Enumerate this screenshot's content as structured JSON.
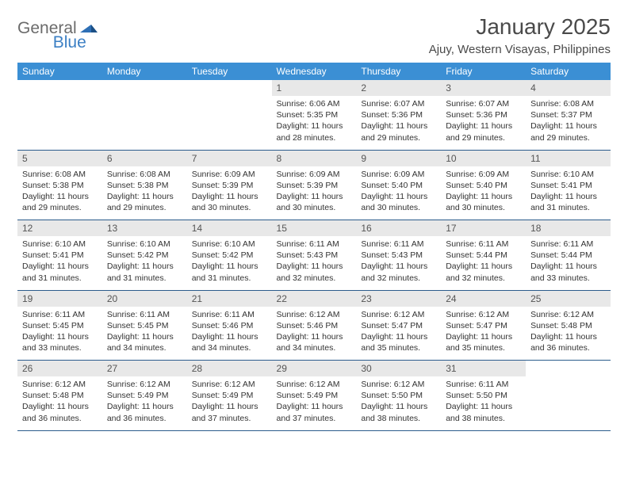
{
  "brand": {
    "part1": "General",
    "part2": "Blue"
  },
  "title": "January 2025",
  "location": "Ajuy, Western Visayas, Philippines",
  "colors": {
    "header_bg": "#3b8fd4",
    "header_fg": "#ffffff",
    "daynum_bg": "#e8e8e8",
    "daynum_fg": "#555555",
    "cell_border": "#2b5c8c",
    "logo_gray": "#6b6b6b",
    "logo_blue": "#3b7fc4",
    "page_bg": "#ffffff",
    "text": "#333333"
  },
  "typography": {
    "month_title_fontsize": 28,
    "location_fontsize": 15,
    "weekday_fontsize": 12,
    "daynum_fontsize": 12,
    "detail_fontsize": 10.5
  },
  "weekdays": [
    "Sunday",
    "Monday",
    "Tuesday",
    "Wednesday",
    "Thursday",
    "Friday",
    "Saturday"
  ],
  "weeks": [
    [
      null,
      null,
      null,
      {
        "n": "1",
        "sr": "6:06 AM",
        "ss": "5:35 PM",
        "dl": "11 hours and 28 minutes."
      },
      {
        "n": "2",
        "sr": "6:07 AM",
        "ss": "5:36 PM",
        "dl": "11 hours and 29 minutes."
      },
      {
        "n": "3",
        "sr": "6:07 AM",
        "ss": "5:36 PM",
        "dl": "11 hours and 29 minutes."
      },
      {
        "n": "4",
        "sr": "6:08 AM",
        "ss": "5:37 PM",
        "dl": "11 hours and 29 minutes."
      }
    ],
    [
      {
        "n": "5",
        "sr": "6:08 AM",
        "ss": "5:38 PM",
        "dl": "11 hours and 29 minutes."
      },
      {
        "n": "6",
        "sr": "6:08 AM",
        "ss": "5:38 PM",
        "dl": "11 hours and 29 minutes."
      },
      {
        "n": "7",
        "sr": "6:09 AM",
        "ss": "5:39 PM",
        "dl": "11 hours and 30 minutes."
      },
      {
        "n": "8",
        "sr": "6:09 AM",
        "ss": "5:39 PM",
        "dl": "11 hours and 30 minutes."
      },
      {
        "n": "9",
        "sr": "6:09 AM",
        "ss": "5:40 PM",
        "dl": "11 hours and 30 minutes."
      },
      {
        "n": "10",
        "sr": "6:09 AM",
        "ss": "5:40 PM",
        "dl": "11 hours and 30 minutes."
      },
      {
        "n": "11",
        "sr": "6:10 AM",
        "ss": "5:41 PM",
        "dl": "11 hours and 31 minutes."
      }
    ],
    [
      {
        "n": "12",
        "sr": "6:10 AM",
        "ss": "5:41 PM",
        "dl": "11 hours and 31 minutes."
      },
      {
        "n": "13",
        "sr": "6:10 AM",
        "ss": "5:42 PM",
        "dl": "11 hours and 31 minutes."
      },
      {
        "n": "14",
        "sr": "6:10 AM",
        "ss": "5:42 PM",
        "dl": "11 hours and 31 minutes."
      },
      {
        "n": "15",
        "sr": "6:11 AM",
        "ss": "5:43 PM",
        "dl": "11 hours and 32 minutes."
      },
      {
        "n": "16",
        "sr": "6:11 AM",
        "ss": "5:43 PM",
        "dl": "11 hours and 32 minutes."
      },
      {
        "n": "17",
        "sr": "6:11 AM",
        "ss": "5:44 PM",
        "dl": "11 hours and 32 minutes."
      },
      {
        "n": "18",
        "sr": "6:11 AM",
        "ss": "5:44 PM",
        "dl": "11 hours and 33 minutes."
      }
    ],
    [
      {
        "n": "19",
        "sr": "6:11 AM",
        "ss": "5:45 PM",
        "dl": "11 hours and 33 minutes."
      },
      {
        "n": "20",
        "sr": "6:11 AM",
        "ss": "5:45 PM",
        "dl": "11 hours and 34 minutes."
      },
      {
        "n": "21",
        "sr": "6:11 AM",
        "ss": "5:46 PM",
        "dl": "11 hours and 34 minutes."
      },
      {
        "n": "22",
        "sr": "6:12 AM",
        "ss": "5:46 PM",
        "dl": "11 hours and 34 minutes."
      },
      {
        "n": "23",
        "sr": "6:12 AM",
        "ss": "5:47 PM",
        "dl": "11 hours and 35 minutes."
      },
      {
        "n": "24",
        "sr": "6:12 AM",
        "ss": "5:47 PM",
        "dl": "11 hours and 35 minutes."
      },
      {
        "n": "25",
        "sr": "6:12 AM",
        "ss": "5:48 PM",
        "dl": "11 hours and 36 minutes."
      }
    ],
    [
      {
        "n": "26",
        "sr": "6:12 AM",
        "ss": "5:48 PM",
        "dl": "11 hours and 36 minutes."
      },
      {
        "n": "27",
        "sr": "6:12 AM",
        "ss": "5:49 PM",
        "dl": "11 hours and 36 minutes."
      },
      {
        "n": "28",
        "sr": "6:12 AM",
        "ss": "5:49 PM",
        "dl": "11 hours and 37 minutes."
      },
      {
        "n": "29",
        "sr": "6:12 AM",
        "ss": "5:49 PM",
        "dl": "11 hours and 37 minutes."
      },
      {
        "n": "30",
        "sr": "6:12 AM",
        "ss": "5:50 PM",
        "dl": "11 hours and 38 minutes."
      },
      {
        "n": "31",
        "sr": "6:11 AM",
        "ss": "5:50 PM",
        "dl": "11 hours and 38 minutes."
      },
      null
    ]
  ],
  "labels": {
    "sunrise": "Sunrise:",
    "sunset": "Sunset:",
    "daylight": "Daylight:"
  }
}
